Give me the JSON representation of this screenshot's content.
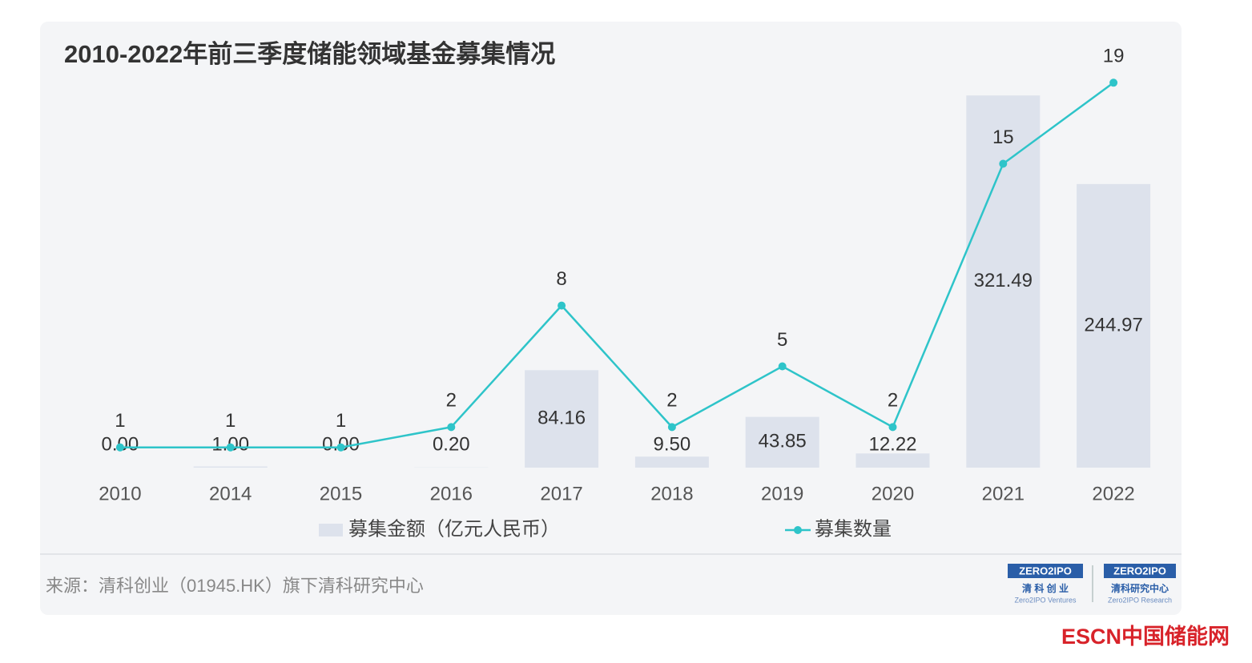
{
  "chart_data": {
    "type": "combo",
    "title": "2010-2022年前三季度储能领域基金募集情况",
    "categories": [
      "2010",
      "2014",
      "2015",
      "2016",
      "2017",
      "2018",
      "2019",
      "2020",
      "2021",
      "2022"
    ],
    "series": [
      {
        "name": "募集金额（亿元人民币）",
        "type": "bar",
        "color": "#dde2ec",
        "values": [
          0.0,
          1.0,
          0.0,
          0.2,
          84.16,
          9.5,
          43.85,
          12.22,
          321.49,
          244.97
        ],
        "value_labels": [
          "0.00",
          "1.00",
          "0.00",
          "0.20",
          "84.16",
          "9.50",
          "43.85",
          "12.22",
          "321.49",
          "244.97"
        ]
      },
      {
        "name": "募集数量",
        "type": "line",
        "axis": "y2",
        "color": "#2ec4c9",
        "values": [
          1,
          1,
          1,
          2,
          8,
          2,
          5,
          2,
          15,
          19
        ]
      }
    ],
    "ylim": [
      0,
      350
    ],
    "y2lim": [
      0,
      20
    ]
  },
  "footer": {
    "source": "来源：清科创业（01945.HK）旗下清科研究中心",
    "logo1": {
      "brand": "ZERO2IPO",
      "name": "清 科 创 业",
      "sub": "Zero2IPO Ventures"
    },
    "logo2": {
      "brand": "ZERO2IPO",
      "name": "清科研究中心",
      "sub": "Zero2IPO Research"
    },
    "watermark": "ESCN中国储能网"
  }
}
